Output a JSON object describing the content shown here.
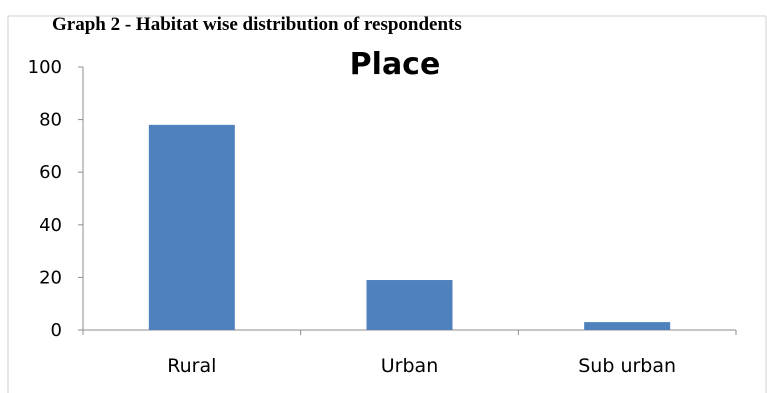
{
  "caption": "Graph 2 - Habitat wise distribution of respondents",
  "chart_data": {
    "type": "bar",
    "title": "Place",
    "categories": [
      "Rural",
      "Urban",
      "Sub urban"
    ],
    "values": [
      78,
      19,
      3
    ],
    "ylim": [
      0,
      100
    ],
    "yticks": [
      0,
      20,
      40,
      60,
      80,
      100
    ],
    "xlabel": "",
    "ylabel": "",
    "grid": false,
    "legend": "none",
    "bar_color": "#4F81BD"
  }
}
